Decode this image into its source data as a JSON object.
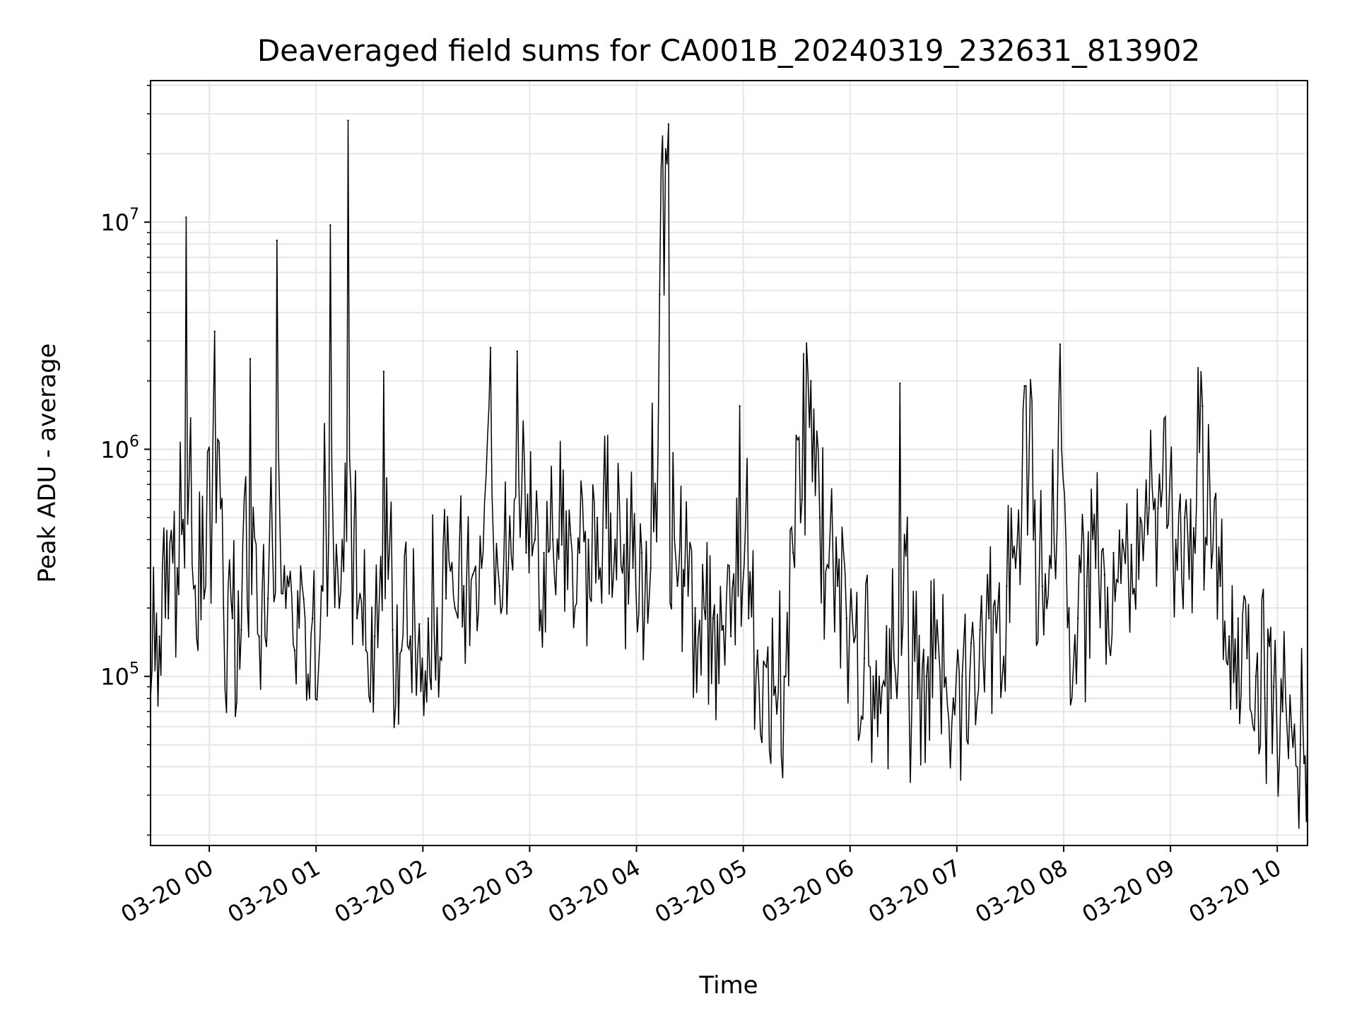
{
  "chart_data": {
    "type": "line",
    "title": "Deaveraged field sums for CA001B_20240319_232631_813902",
    "xlabel": "Time",
    "ylabel": "Peak ADU - average",
    "y_scale": "log",
    "ylim": [
      18000,
      42000000
    ],
    "y_ticks": [
      {
        "value": 100000,
        "base": "10",
        "exp": "5"
      },
      {
        "value": 1000000,
        "base": "10",
        "exp": "6"
      },
      {
        "value": 10000000,
        "base": "10",
        "exp": "7"
      }
    ],
    "xlim": [
      "2024-03-19 23:27",
      "2024-03-20 10:17"
    ],
    "x_ticks": [
      {
        "value": "2024-03-20 00:00",
        "label": "03-20 00"
      },
      {
        "value": "2024-03-20 01:00",
        "label": "03-20 01"
      },
      {
        "value": "2024-03-20 02:00",
        "label": "03-20 02"
      },
      {
        "value": "2024-03-20 03:00",
        "label": "03-20 03"
      },
      {
        "value": "2024-03-20 04:00",
        "label": "03-20 04"
      },
      {
        "value": "2024-03-20 05:00",
        "label": "03-20 05"
      },
      {
        "value": "2024-03-20 06:00",
        "label": "03-20 06"
      },
      {
        "value": "2024-03-20 07:00",
        "label": "03-20 07"
      },
      {
        "value": "2024-03-20 08:00",
        "label": "03-20 08"
      },
      {
        "value": "2024-03-20 09:00",
        "label": "03-20 09"
      },
      {
        "value": "2024-03-20 10:00",
        "label": "03-20 10"
      }
    ],
    "grid": true,
    "line_color": "#000000",
    "grid_color": "#e6e6e6",
    "series": [
      {
        "x": [
          "2024-03-19 23:27",
          "2024-03-19 23:32",
          "2024-03-19 23:37",
          "2024-03-19 23:42",
          "2024-03-19 23:47",
          "2024-03-19 23:52",
          "2024-03-19 23:57",
          "2024-03-20 00:03",
          "2024-03-20 00:08",
          "2024-03-20 00:13",
          "2024-03-20 00:18",
          "2024-03-20 00:23",
          "2024-03-20 00:28",
          "2024-03-20 00:33",
          "2024-03-20 00:38",
          "2024-03-20 00:43",
          "2024-03-20 00:48",
          "2024-03-20 00:53",
          "2024-03-20 00:58",
          "2024-03-20 01:03",
          "2024-03-20 01:08",
          "2024-03-20 01:13",
          "2024-03-20 01:18",
          "2024-03-20 01:23",
          "2024-03-20 01:28",
          "2024-03-20 01:33",
          "2024-03-20 01:38",
          "2024-03-20 01:43",
          "2024-03-20 01:48",
          "2024-03-20 01:53",
          "2024-03-20 01:58",
          "2024-03-20 02:03",
          "2024-03-20 02:08",
          "2024-03-20 02:13",
          "2024-03-20 02:18",
          "2024-03-20 02:23",
          "2024-03-20 02:28",
          "2024-03-20 02:33",
          "2024-03-20 02:38",
          "2024-03-20 02:43",
          "2024-03-20 02:48",
          "2024-03-20 02:53",
          "2024-03-20 02:58",
          "2024-03-20 03:03",
          "2024-03-20 03:08",
          "2024-03-20 03:13",
          "2024-03-20 03:18",
          "2024-03-20 03:23",
          "2024-03-20 03:28",
          "2024-03-20 03:33",
          "2024-03-20 03:38",
          "2024-03-20 03:43",
          "2024-03-20 03:48",
          "2024-03-20 03:53",
          "2024-03-20 03:58",
          "2024-03-20 04:03",
          "2024-03-20 04:08",
          "2024-03-20 04:13",
          "2024-03-20 04:18",
          "2024-03-20 04:23",
          "2024-03-20 04:27",
          "2024-03-20 04:33",
          "2024-03-20 04:38",
          "2024-03-20 04:43",
          "2024-03-20 04:48",
          "2024-03-20 04:53",
          "2024-03-20 04:58",
          "2024-03-20 05:03",
          "2024-03-20 05:08",
          "2024-03-20 05:13",
          "2024-03-20 05:18",
          "2024-03-20 05:23",
          "2024-03-20 05:28",
          "2024-03-20 05:33",
          "2024-03-20 05:38",
          "2024-03-20 05:43",
          "2024-03-20 05:48",
          "2024-03-20 05:53",
          "2024-03-20 05:58",
          "2024-03-20 06:03",
          "2024-03-20 06:08",
          "2024-03-20 06:13",
          "2024-03-20 06:18",
          "2024-03-20 06:23",
          "2024-03-20 06:28",
          "2024-03-20 06:33",
          "2024-03-20 06:38",
          "2024-03-20 06:43",
          "2024-03-20 06:48",
          "2024-03-20 06:53",
          "2024-03-20 06:58",
          "2024-03-20 07:03",
          "2024-03-20 07:08",
          "2024-03-20 07:13",
          "2024-03-20 07:18",
          "2024-03-20 07:23",
          "2024-03-20 07:28",
          "2024-03-20 07:33",
          "2024-03-20 07:38",
          "2024-03-20 07:43",
          "2024-03-20 07:48",
          "2024-03-20 07:53",
          "2024-03-20 07:58",
          "2024-03-20 08:03",
          "2024-03-20 08:08",
          "2024-03-20 08:13",
          "2024-03-20 08:18",
          "2024-03-20 08:23",
          "2024-03-20 08:28",
          "2024-03-20 08:33",
          "2024-03-20 08:38",
          "2024-03-20 08:43",
          "2024-03-20 08:48",
          "2024-03-20 08:53",
          "2024-03-20 08:58",
          "2024-03-20 09:03",
          "2024-03-20 09:08",
          "2024-03-20 09:13",
          "2024-03-20 09:18",
          "2024-03-20 09:23",
          "2024-03-20 09:28",
          "2024-03-20 09:33",
          "2024-03-20 09:38",
          "2024-03-20 09:43",
          "2024-03-20 09:48",
          "2024-03-20 09:53",
          "2024-03-20 09:58",
          "2024-03-20 10:03",
          "2024-03-20 10:08",
          "2024-03-20 10:13",
          "2024-03-20 10:17"
        ],
        "values": [
          80000,
          150000,
          180000,
          300000,
          10500000,
          250000,
          220000,
          3300000,
          200000,
          180000,
          160000,
          2500000,
          150000,
          220000,
          8300000,
          200000,
          130000,
          220000,
          180000,
          250000,
          9700000,
          200000,
          28000000,
          180000,
          130000,
          150000,
          2200000,
          160000,
          130000,
          150000,
          170000,
          180000,
          200000,
          220000,
          200000,
          250000,
          280000,
          300000,
          2800000,
          250000,
          300000,
          2700000,
          350000,
          400000,
          350000,
          400000,
          380000,
          420000,
          350000,
          400000,
          500000,
          450000,
          400000,
          380000,
          300000,
          350000,
          300000,
          4800000,
          27000000,
          250000,
          250000,
          200000,
          200000,
          180000,
          160000,
          150000,
          1550000,
          180000,
          130000,
          110000,
          90000,
          100000,
          350000,
          600000,
          2000000,
          500000,
          300000,
          250000,
          180000,
          150000,
          120000,
          100000,
          90000,
          80000,
          1950000,
          90000,
          80000,
          100000,
          120000,
          90000,
          80000,
          100000,
          140000,
          160000,
          180000,
          200000,
          250000,
          300000,
          1900000,
          400000,
          250000,
          300000,
          2900000,
          200000,
          180000,
          250000,
          300000,
          280000,
          350000,
          400000,
          380000,
          500000,
          550000,
          550000,
          450000,
          400000,
          500000,
          450000,
          1550000,
          300000,
          250000,
          150000,
          180000,
          120000,
          100000,
          80000,
          90000,
          70000,
          60000,
          50000,
          60000
        ]
      }
    ]
  }
}
